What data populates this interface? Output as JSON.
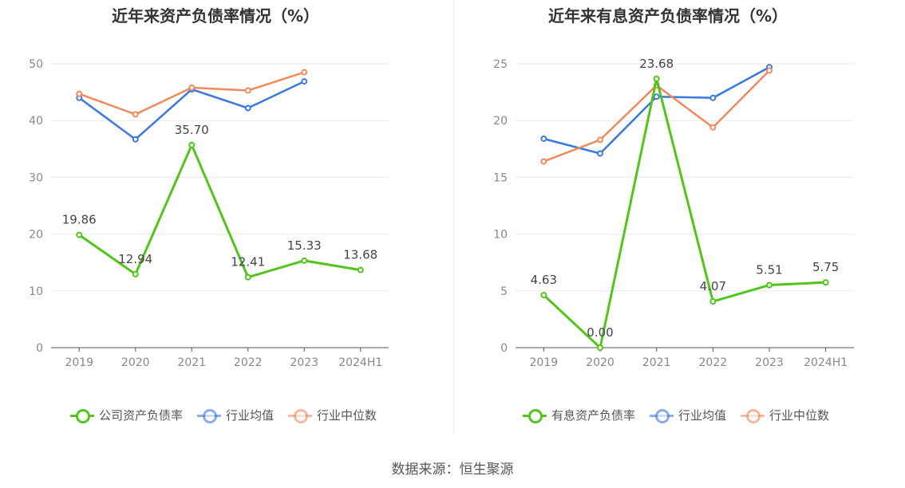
{
  "colors": {
    "green": "#52c41a",
    "blue": "#3a78e0",
    "orange": "#f08a5d",
    "grid": "#e6e9ef",
    "axis": "#555555"
  },
  "source": "数据来源：恒生聚源",
  "chart_data": [
    {
      "type": "line",
      "title": "近年来资产负债率情况（%）",
      "categories": [
        "2019",
        "2020",
        "2021",
        "2022",
        "2023",
        "2024H1"
      ],
      "ylim": [
        0,
        50
      ],
      "yticks": [
        "0",
        "10",
        "20",
        "30",
        "40",
        "50"
      ],
      "grid": true,
      "legend_placement": "bottom",
      "series": [
        {
          "name": "公司资产负债率",
          "color": "green",
          "labeled": true,
          "values": [
            19.86,
            12.94,
            35.7,
            12.41,
            15.33,
            13.68
          ],
          "labels": [
            "19.86",
            "12.94",
            "35.70",
            "12.41",
            "15.33",
            "13.68"
          ]
        },
        {
          "name": "行业均值",
          "color": "blue",
          "labeled": false,
          "values": [
            44.0,
            36.7,
            45.5,
            42.2,
            46.9,
            null
          ]
        },
        {
          "name": "行业中位数",
          "color": "orange",
          "labeled": false,
          "values": [
            44.7,
            41.1,
            45.8,
            45.3,
            48.5,
            null
          ]
        }
      ]
    },
    {
      "type": "line",
      "title": "近年来有息资产负债率情况（%）",
      "categories": [
        "2019",
        "2020",
        "2021",
        "2022",
        "2023",
        "2024H1"
      ],
      "ylim": [
        0,
        25
      ],
      "yticks": [
        "0",
        "5",
        "10",
        "15",
        "20",
        "25"
      ],
      "grid": true,
      "legend_placement": "bottom",
      "series": [
        {
          "name": "有息资产负债率",
          "color": "green",
          "labeled": true,
          "values": [
            4.63,
            0.0,
            23.68,
            4.07,
            5.51,
            5.75
          ],
          "labels": [
            "4.63",
            "0.00",
            "23.68",
            "4.07",
            "5.51",
            "5.75"
          ]
        },
        {
          "name": "行业均值",
          "color": "blue",
          "labeled": false,
          "values": [
            18.4,
            17.1,
            22.1,
            22.0,
            24.7,
            null
          ]
        },
        {
          "name": "行业中位数",
          "color": "orange",
          "labeled": false,
          "values": [
            16.4,
            18.3,
            23.1,
            19.4,
            24.4,
            null
          ]
        }
      ]
    }
  ]
}
